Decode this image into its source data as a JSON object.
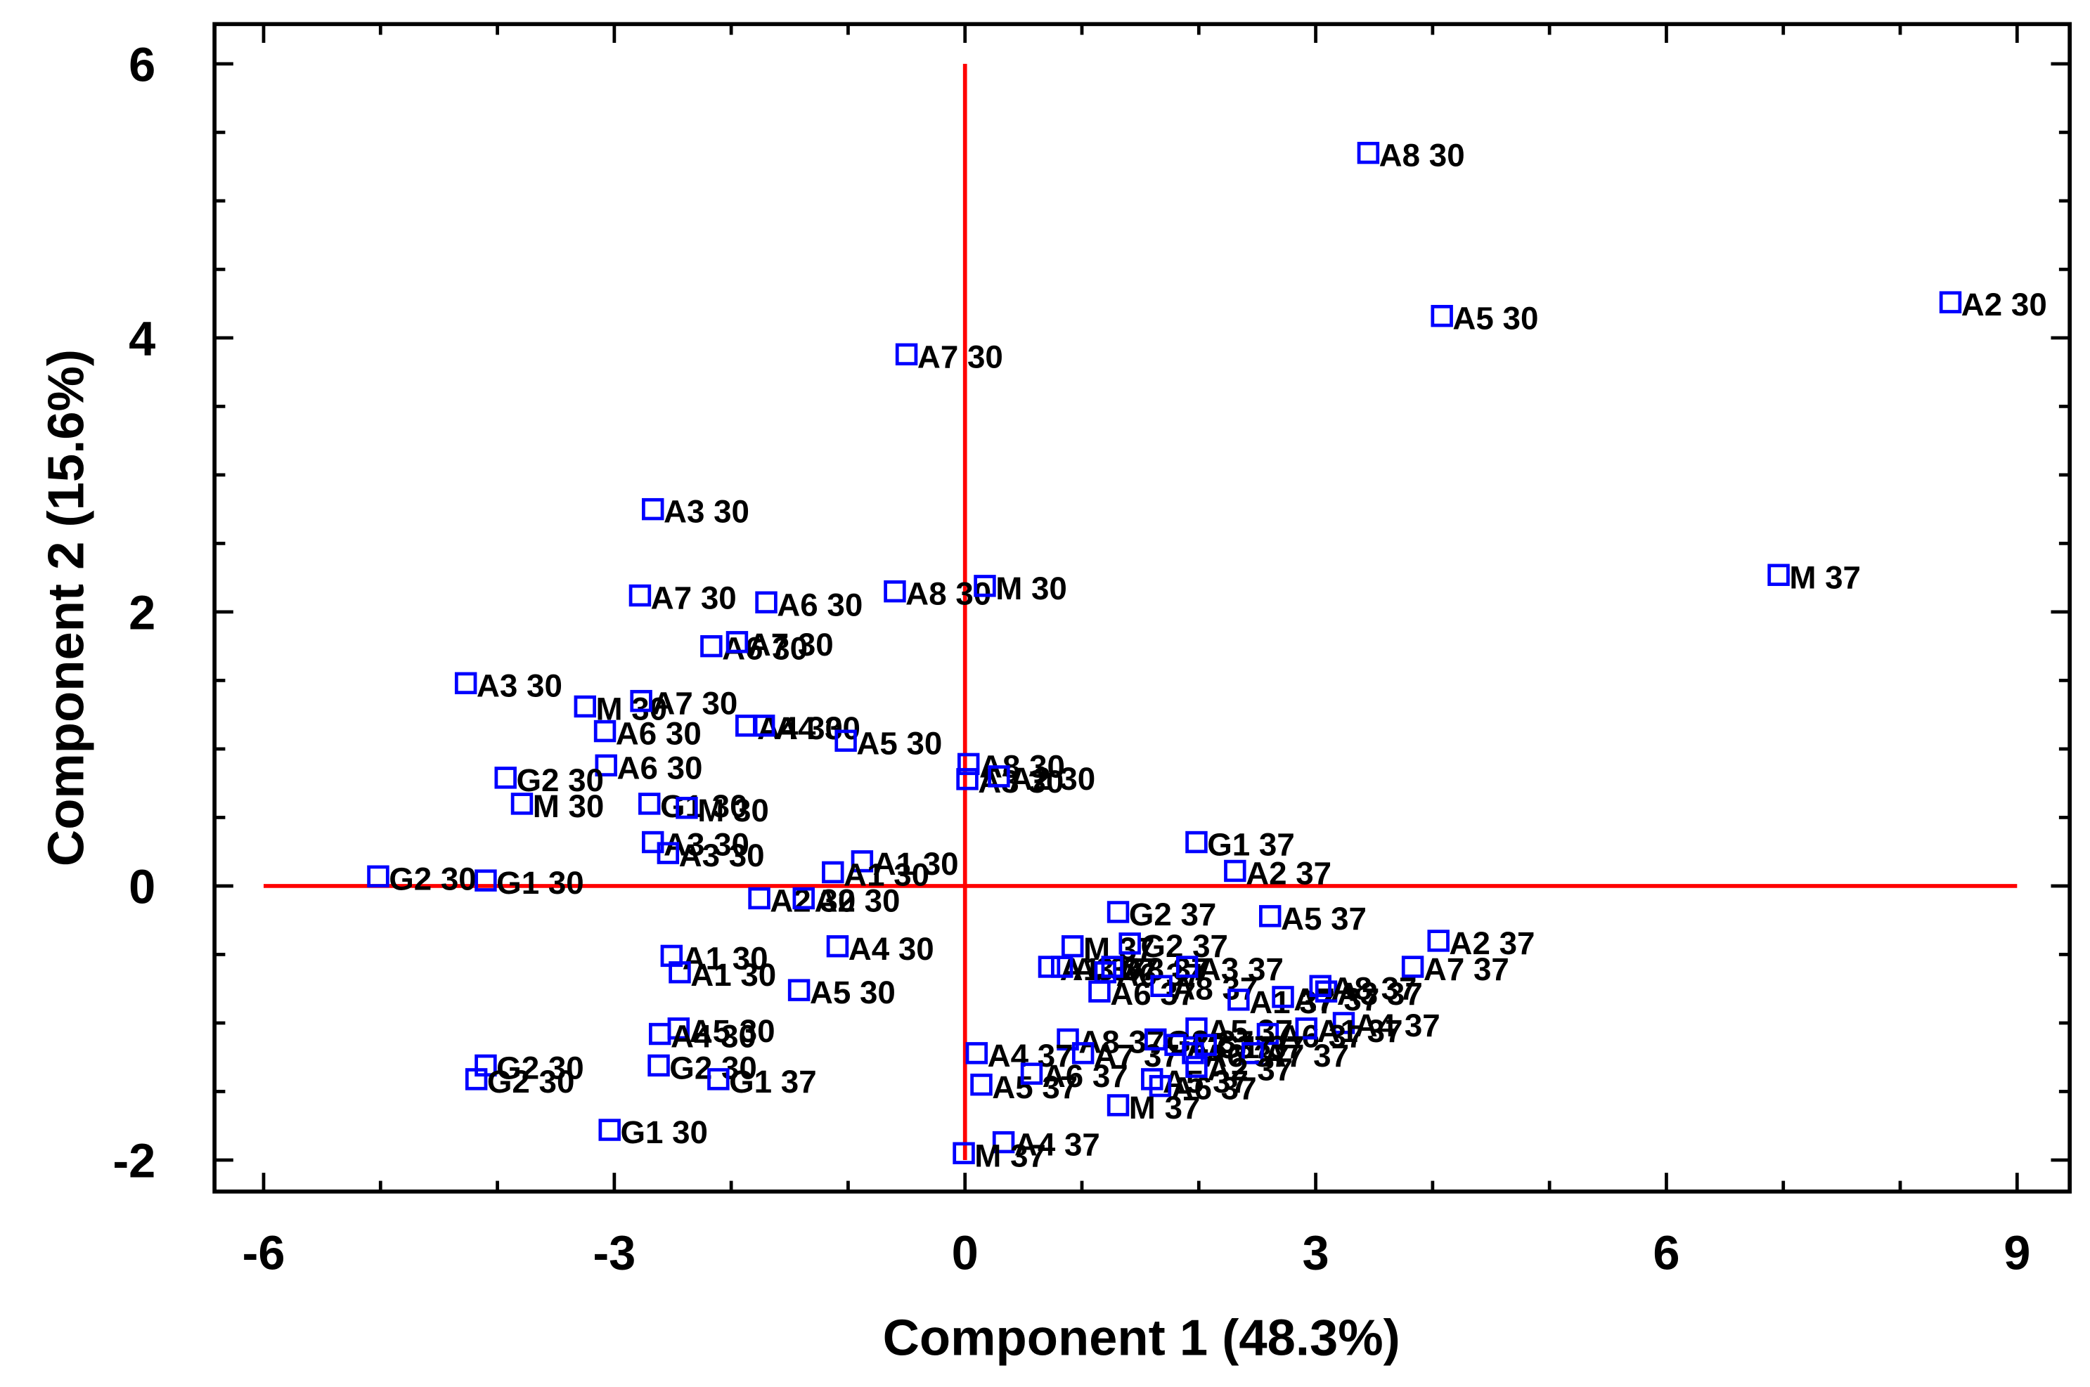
{
  "chart_data": {
    "type": "scatter",
    "x_label": "Component 1 (48.3%)",
    "y_label": "Component 2 (15.6%)",
    "xlim": [
      -6.42,
      9.45
    ],
    "ylim": [
      -2.23,
      6.29
    ],
    "xticks": [
      -6,
      -3,
      0,
      3,
      6,
      9
    ],
    "yticks": [
      -2,
      0,
      2,
      4,
      6
    ],
    "xminorticks": [
      -5,
      -4,
      -2,
      -1,
      1,
      2,
      4,
      5,
      7,
      8
    ],
    "yminorticks": [
      -1.5,
      -1,
      -0.5,
      0.5,
      1,
      1.5,
      2.5,
      3,
      3.5,
      4.5,
      5,
      5.5
    ],
    "reference_lines": {
      "color": "#ff0000",
      "x": 0,
      "y": 0
    },
    "marker": "square",
    "color": "#0000ff",
    "x": [
      3.45,
      4.08,
      8.43,
      -0.5,
      -2.67,
      6.96,
      -2.78,
      -1.7,
      -0.6,
      0.17,
      -2.17,
      -1.95,
      -4.27,
      -3.25,
      -2.77,
      -3.08,
      -1.87,
      -1.72,
      -1.02,
      -3.07,
      -3.93,
      -3.79,
      -2.7,
      -2.38,
      0.03,
      0.02,
      0.29,
      -2.67,
      -2.54,
      -0.88,
      -1.13,
      -5.02,
      -4.1,
      -1.76,
      -1.38,
      -1.09,
      -2.51,
      -2.44,
      -1.42,
      -2.45,
      -2.61,
      -2.62,
      -2.11,
      -4.1,
      -4.18,
      -3.04,
      1.98,
      2.31,
      1.31,
      2.61,
      4.05,
      3.83,
      0.92,
      1.41,
      0.72,
      0.83,
      1.2,
      1.26,
      1.9,
      1.15,
      1.68,
      2.34,
      2.72,
      3.09,
      3.04,
      3.24,
      1.98,
      2.59,
      2.92,
      0.88,
      1.01,
      1.63,
      1.8,
      1.95,
      2.06,
      2.46,
      1.6,
      1.67,
      1.98,
      0.1,
      0.14,
      0.57,
      1.31,
      0.33,
      -0.01
    ],
    "y": [
      5.35,
      4.16,
      4.26,
      3.88,
      2.75,
      2.27,
      2.12,
      2.07,
      2.15,
      2.19,
      1.75,
      1.78,
      1.48,
      1.31,
      1.35,
      1.13,
      1.17,
      1.17,
      1.06,
      0.88,
      0.79,
      0.6,
      0.6,
      0.57,
      0.89,
      0.78,
      0.8,
      0.32,
      0.24,
      0.18,
      0.1,
      0.07,
      0.04,
      -0.09,
      -0.09,
      -0.44,
      -0.51,
      -0.63,
      -0.76,
      -1.04,
      -1.08,
      -1.31,
      -1.41,
      -1.31,
      -1.41,
      -1.78,
      0.32,
      0.11,
      -0.19,
      -0.22,
      -0.4,
      -0.59,
      -0.44,
      -0.42,
      -0.59,
      -0.59,
      -0.63,
      -0.59,
      -0.59,
      -0.77,
      -0.73,
      -0.83,
      -0.81,
      -0.77,
      -0.73,
      -1.0,
      -1.04,
      -1.08,
      -1.04,
      -1.12,
      -1.22,
      -1.12,
      -1.16,
      -1.22,
      -1.16,
      -1.22,
      -1.41,
      -1.46,
      -1.32,
      -1.22,
      -1.45,
      -1.37,
      -1.6,
      -1.87,
      -1.95
    ],
    "point_labels": [
      "A8 30",
      "A5 30",
      "A2 30",
      "A7 30",
      "A3 30",
      "M 37",
      "A7 30",
      "A6 30",
      "A8 30",
      "M 30",
      "A6 30",
      "A7 30",
      "A3 30",
      "M 30",
      "A7 30",
      "A6 30",
      "A4 30",
      "A4 30",
      "A5 30",
      "A6 30",
      "G2 30",
      "M 30",
      "G1 30",
      "M 30",
      "A8 30",
      "A3 30",
      "A2 30",
      "A3 30",
      "A3 30",
      "A1 30",
      "A1 30",
      "G2 30",
      "G1 30",
      "A2 30",
      "A2 30",
      "A4 30",
      "A1 30",
      "A1 30",
      "A5 30",
      "A5 30",
      "A4 30",
      "G2 30",
      "G1 37",
      "G2 30",
      "G2 30",
      "G1 30",
      "G1 37",
      "A2 37",
      "G2 37",
      "A5 37",
      "A2 37",
      "A7 37",
      "M 37",
      "G2 37",
      "A1 37",
      "A3 37",
      "A6 37",
      "A8 37",
      "A3 37",
      "A6 37",
      "A8 37",
      "A1 37",
      "A7 37",
      "A3 37",
      "A8 37",
      "A4 37",
      "A5 37",
      "A6 37",
      "A1 37",
      "A8 37",
      "A7 37",
      "G2 37",
      "A3 37",
      "A6 37",
      "G1 37",
      "A7 37",
      "A5 37",
      "A6 37",
      "A2 37",
      "A4 37",
      "A5 37",
      "A6 37",
      "M 37",
      "A4 37",
      "M 37"
    ]
  }
}
